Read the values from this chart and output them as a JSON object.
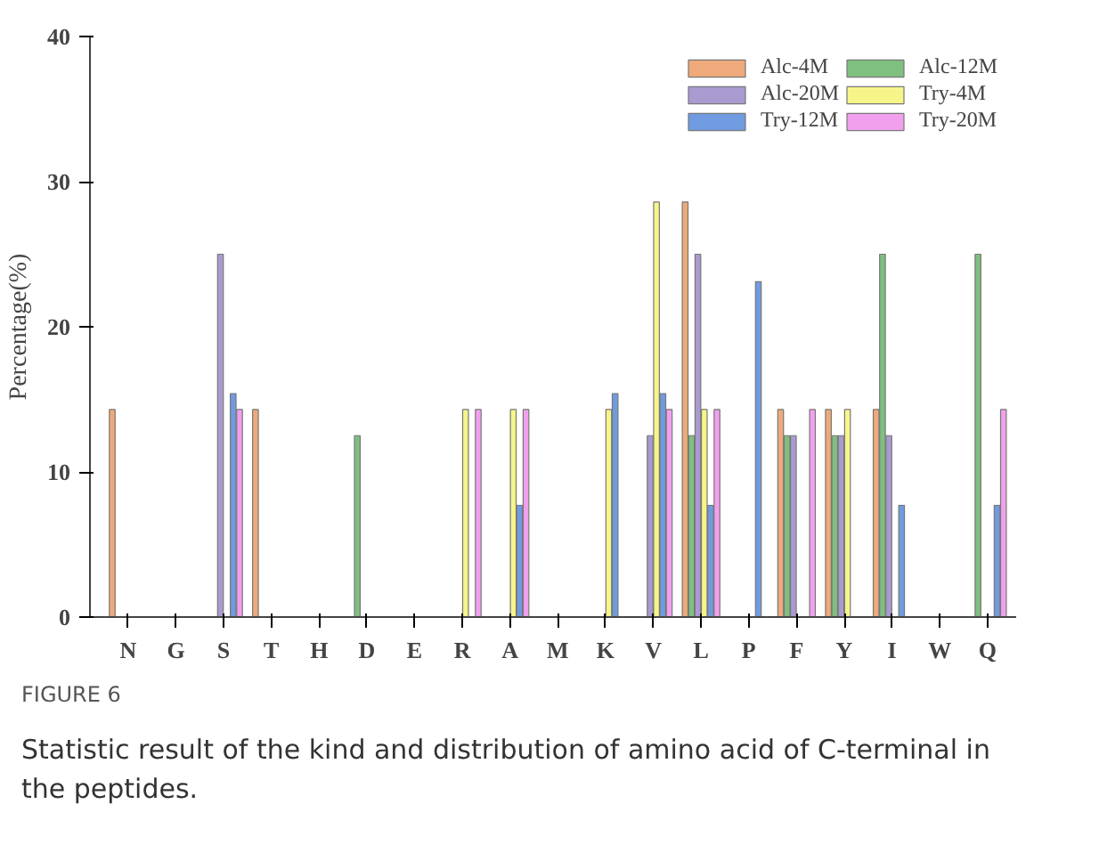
{
  "chart_data": {
    "type": "bar",
    "ylabel": "Percentage(%)",
    "categories": [
      "N",
      "G",
      "S",
      "T",
      "H",
      "D",
      "E",
      "R",
      "A",
      "M",
      "K",
      "V",
      "L",
      "P",
      "F",
      "Y",
      "I",
      "W",
      "Q"
    ],
    "series": [
      {
        "name": "Alc-4M",
        "color": "#eeaa7a",
        "values": [
          14.3,
          null,
          null,
          14.3,
          null,
          null,
          null,
          null,
          null,
          null,
          null,
          null,
          28.6,
          null,
          14.3,
          14.3,
          14.3,
          null,
          null
        ]
      },
      {
        "name": "Alc-12M",
        "color": "#7fbf80",
        "values": [
          null,
          null,
          null,
          null,
          null,
          12.5,
          null,
          null,
          null,
          null,
          null,
          null,
          12.5,
          null,
          12.5,
          12.5,
          25,
          null,
          25
        ]
      },
      {
        "name": "Alc-20M",
        "color": "#a99bd0",
        "values": [
          null,
          null,
          25,
          null,
          null,
          null,
          null,
          null,
          null,
          null,
          null,
          12.5,
          25,
          null,
          12.5,
          12.5,
          12.5,
          null,
          null
        ]
      },
      {
        "name": "Try-4M",
        "color": "#f6f58a",
        "values": [
          null,
          null,
          null,
          null,
          null,
          null,
          null,
          14.3,
          14.3,
          null,
          14.3,
          28.6,
          14.3,
          null,
          null,
          14.3,
          null,
          null,
          null
        ]
      },
      {
        "name": "Try-12M",
        "color": "#6f9be0",
        "values": [
          null,
          null,
          15.4,
          null,
          null,
          null,
          null,
          null,
          7.7,
          null,
          15.4,
          15.4,
          7.7,
          23.1,
          null,
          null,
          7.7,
          null,
          7.7
        ]
      },
      {
        "name": "Try-20M",
        "color": "#f2a0ee",
        "values": [
          null,
          null,
          14.3,
          null,
          null,
          null,
          null,
          14.3,
          14.3,
          null,
          null,
          14.3,
          14.3,
          null,
          14.3,
          null,
          null,
          null,
          14.3
        ]
      }
    ],
    "ylim": [
      0,
      40
    ],
    "yticks": [
      0,
      10,
      20,
      30,
      40
    ],
    "legend": "top right",
    "annotations": [
      "FIGURE 6",
      "Statistic result of the kind and distribution of amino acid of C-terminal in the peptides."
    ]
  }
}
